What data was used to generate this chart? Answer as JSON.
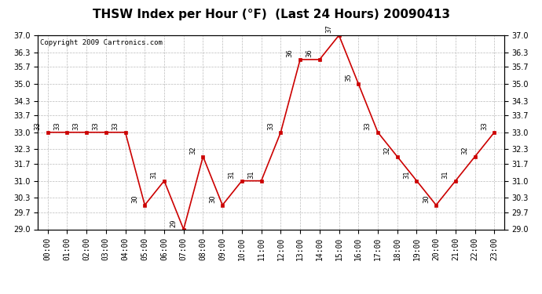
{
  "title": "THSW Index per Hour (°F)  (Last 24 Hours) 20090413",
  "copyright": "Copyright 2009 Cartronics.com",
  "hours": [
    "00:00",
    "01:00",
    "02:00",
    "03:00",
    "04:00",
    "05:00",
    "06:00",
    "07:00",
    "08:00",
    "09:00",
    "10:00",
    "11:00",
    "12:00",
    "13:00",
    "14:00",
    "15:00",
    "16:00",
    "17:00",
    "18:00",
    "19:00",
    "20:00",
    "21:00",
    "22:00",
    "23:00"
  ],
  "values": [
    33,
    33,
    33,
    33,
    33,
    30,
    31,
    29,
    32,
    30,
    31,
    31,
    33,
    36,
    36,
    37,
    35,
    33,
    32,
    31,
    30,
    31,
    32,
    33
  ],
  "ylim_min": 29.0,
  "ylim_max": 37.0,
  "yticks": [
    29.0,
    29.7,
    30.3,
    31.0,
    31.7,
    32.3,
    33.0,
    33.7,
    34.3,
    35.0,
    35.7,
    36.3,
    37.0
  ],
  "line_color": "#cc0000",
  "marker_color": "#cc0000",
  "bg_color": "#ffffff",
  "grid_color": "#bbbbbb",
  "title_fontsize": 11,
  "tick_fontsize": 7,
  "annot_fontsize": 6,
  "copyright_fontsize": 6.5
}
